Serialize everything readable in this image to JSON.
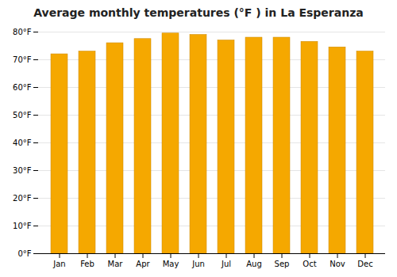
{
  "chart_data": {
    "type": "bar",
    "title": "Average monthly temperatures (°F ) in La Esperanza",
    "categories": [
      "Jan",
      "Feb",
      "Mar",
      "Apr",
      "May",
      "Jun",
      "Jul",
      "Aug",
      "Sep",
      "Oct",
      "Nov",
      "Dec"
    ],
    "values": [
      72,
      73,
      76,
      77.5,
      79.5,
      79,
      77,
      78,
      78,
      76.5,
      74.5,
      73
    ],
    "color": "#F5A800",
    "ylim": [
      0,
      80
    ],
    "yticks": [
      {
        "value": 0,
        "label": "0°F"
      },
      {
        "value": 10,
        "label": "10°F"
      },
      {
        "value": 20,
        "label": "20°F"
      },
      {
        "value": 30,
        "label": "30°F"
      },
      {
        "value": 40,
        "label": "40°F"
      },
      {
        "value": 50,
        "label": "50°F"
      },
      {
        "value": 60,
        "label": "60°F"
      },
      {
        "value": 70,
        "label": "70°F"
      },
      {
        "value": 80,
        "label": "80°F"
      }
    ],
    "grid": true
  }
}
